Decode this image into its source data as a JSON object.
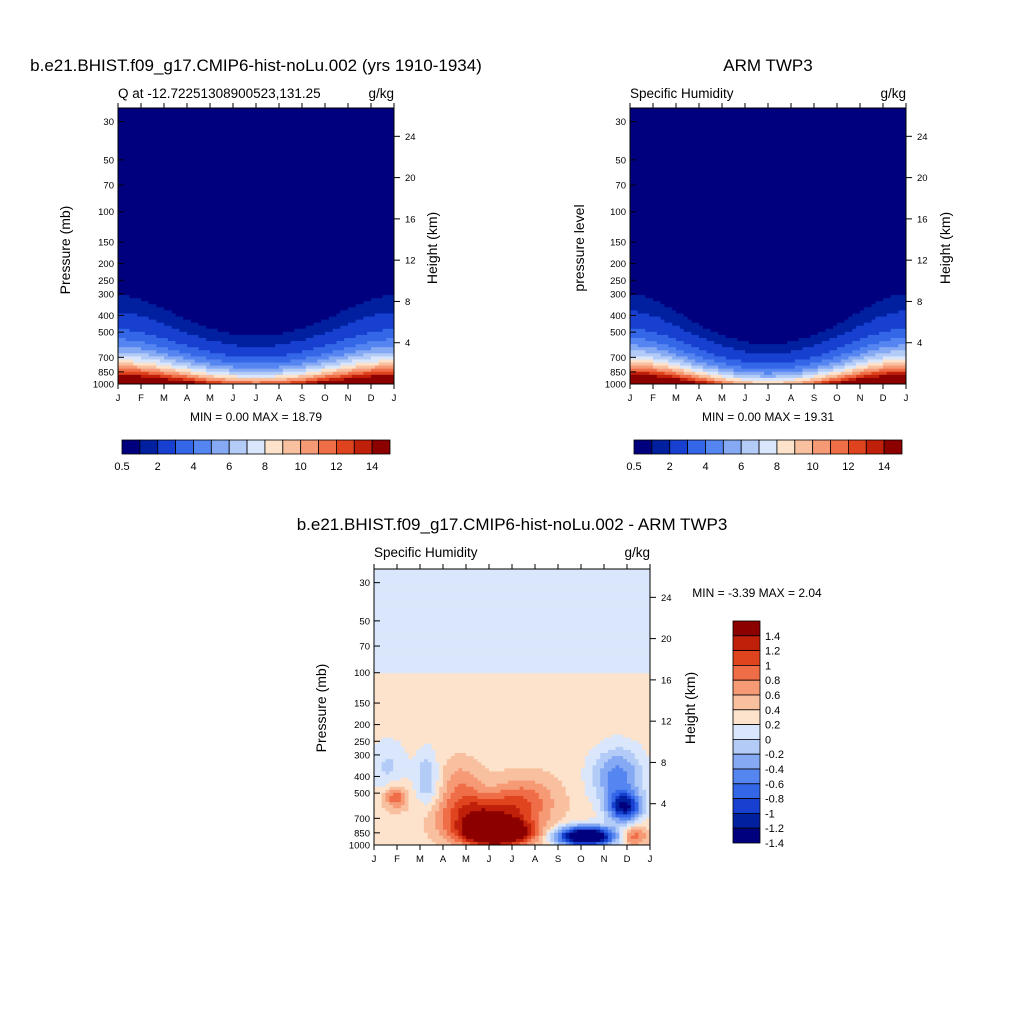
{
  "panels": [
    {
      "title": "b.e21.BHIST.f09_g17.CMIP6-hist-noLu.002 (yrs 1910-1934)",
      "left_label": "Q at -12.72251308900523,131.25",
      "right_label": "g/kg",
      "ylabel": "Pressure (mb)",
      "ylabel_right": "Height (km)",
      "stats": "MIN =   0.00 MAX =  18.79"
    },
    {
      "title": "ARM TWP3",
      "left_label": "Specific Humidity",
      "right_label": "g/kg",
      "ylabel": "pressure level",
      "ylabel_right": "Height (km)",
      "stats": "MIN =   0.00 MAX =  19.31"
    },
    {
      "title": "b.e21.BHIST.f09_g17.CMIP6-hist-noLu.002 - ARM TWP3",
      "left_label": "Specific Humidity",
      "right_label": "g/kg",
      "ylabel": "Pressure (mb)",
      "ylabel_right": "Height (km)",
      "stats": "MIN =  -3.39 MAX =   2.04"
    }
  ],
  "chart_data": [
    {
      "type": "heatmap",
      "title": "b.e21.BHIST.f09_g17.CMIP6-hist-noLu.002 (yrs 1910-1934)",
      "subtitle": "Q at -12.72251308900523,131.25",
      "units": "g/kg",
      "ylabel": "Pressure (mb)",
      "ylabel_right": "Height (km)",
      "x_ticks": [
        "J",
        "F",
        "M",
        "A",
        "M",
        "J",
        "J",
        "A",
        "S",
        "O",
        "N",
        "D",
        "J"
      ],
      "y_ticks": [
        30,
        50,
        70,
        100,
        150,
        200,
        250,
        300,
        400,
        500,
        700,
        850,
        1000
      ],
      "y_right_ticks": [
        4,
        8,
        12,
        16,
        20,
        24
      ],
      "y_scale": "log",
      "ylim": [
        1000,
        25
      ],
      "min": 0.0,
      "max": 18.79,
      "colorbar_ticks": [
        "0.5",
        "2",
        "4",
        "6",
        "8",
        "10",
        "12",
        "14"
      ],
      "colorbar_levels": [
        0.5,
        1,
        2,
        3,
        4,
        5,
        6,
        7,
        8,
        9,
        10,
        11,
        12,
        13,
        14
      ],
      "colorbar_orientation": "horizontal"
    },
    {
      "type": "heatmap",
      "title": "ARM TWP3",
      "subtitle": "Specific Humidity",
      "units": "g/kg",
      "ylabel": "pressure level",
      "ylabel_right": "Height (km)",
      "x_ticks": [
        "J",
        "F",
        "M",
        "A",
        "M",
        "J",
        "J",
        "A",
        "S",
        "O",
        "N",
        "D",
        "J"
      ],
      "y_ticks": [
        30,
        50,
        70,
        100,
        150,
        200,
        250,
        300,
        400,
        500,
        700,
        850,
        1000
      ],
      "y_right_ticks": [
        4,
        8,
        12,
        16,
        20,
        24
      ],
      "y_scale": "log",
      "ylim": [
        1000,
        25
      ],
      "min": 0.0,
      "max": 19.31,
      "colorbar_ticks": [
        "0.5",
        "2",
        "4",
        "6",
        "8",
        "10",
        "12",
        "14"
      ],
      "colorbar_levels": [
        0.5,
        1,
        2,
        3,
        4,
        5,
        6,
        7,
        8,
        9,
        10,
        11,
        12,
        13,
        14
      ],
      "colorbar_orientation": "horizontal"
    },
    {
      "type": "heatmap",
      "title": "b.e21.BHIST.f09_g17.CMIP6-hist-noLu.002 - ARM TWP3",
      "subtitle": "Specific Humidity",
      "units": "g/kg",
      "ylabel": "Pressure (mb)",
      "ylabel_right": "Height (km)",
      "x_ticks": [
        "J",
        "F",
        "M",
        "A",
        "M",
        "J",
        "J",
        "A",
        "S",
        "O",
        "N",
        "D",
        "J"
      ],
      "y_ticks": [
        30,
        50,
        70,
        100,
        150,
        200,
        250,
        300,
        400,
        500,
        700,
        850,
        1000
      ],
      "y_right_ticks": [
        4,
        8,
        12,
        16,
        20,
        24
      ],
      "y_scale": "log",
      "ylim": [
        1000,
        25
      ],
      "min": -3.39,
      "max": 2.04,
      "colorbar_ticks": [
        "1.4",
        "1.2",
        "1",
        "0.8",
        "0.6",
        "0.4",
        "0.2",
        "0",
        "-0.2",
        "-0.4",
        "-0.6",
        "-0.8",
        "-1",
        "-1.2",
        "-1.4"
      ],
      "colorbar_levels": [
        -1.4,
        -1.2,
        -1,
        -0.8,
        -0.6,
        -0.4,
        -0.2,
        0,
        0.2,
        0.4,
        0.6,
        0.8,
        1,
        1.2,
        1.4
      ],
      "colorbar_orientation": "vertical"
    }
  ],
  "colors": {
    "seq": [
      "#00007f",
      "#0020a0",
      "#1840d0",
      "#3466e8",
      "#5585f0",
      "#86a9f4",
      "#b3ccf7",
      "#d9e6fb",
      "#fde3cc",
      "#f9c0a0",
      "#f59a75",
      "#ef6e48",
      "#e0441f",
      "#c0200a",
      "#8c0000"
    ],
    "diff": [
      "#00007f",
      "#0020a0",
      "#1840d0",
      "#3466e8",
      "#5585f0",
      "#86a9f4",
      "#b3ccf7",
      "#d9e6fb",
      "#fde3cc",
      "#f9c0a0",
      "#f59a75",
      "#ef6e48",
      "#e0441f",
      "#c0200a",
      "#8c0000"
    ]
  }
}
